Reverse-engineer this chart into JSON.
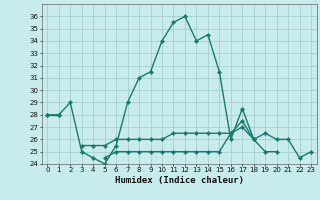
{
  "xlabel": "Humidex (Indice chaleur)",
  "background_color": "#c8ecec",
  "grid_color": "#aad4d4",
  "line_color": "#1a7a6e",
  "xlim": [
    -0.5,
    23.5
  ],
  "ylim": [
    24,
    37
  ],
  "yticks": [
    24,
    25,
    26,
    27,
    28,
    29,
    30,
    31,
    32,
    33,
    34,
    35,
    36
  ],
  "xticks": [
    0,
    1,
    2,
    3,
    4,
    5,
    6,
    7,
    8,
    9,
    10,
    11,
    12,
    13,
    14,
    15,
    16,
    17,
    18,
    19,
    20,
    21,
    22,
    23
  ],
  "series": [
    {
      "x": [
        0,
        1,
        2,
        3,
        4,
        5,
        6,
        7,
        8,
        9,
        10,
        11,
        12,
        13,
        14,
        15,
        16,
        17,
        18,
        19,
        20,
        21,
        22,
        23
      ],
      "y": [
        28,
        28,
        29,
        25,
        24.5,
        24,
        25.5,
        29,
        31,
        31.5,
        34,
        35.5,
        36,
        34,
        34.5,
        31.5,
        26,
        28.5,
        26,
        26.5,
        26,
        26,
        24.5,
        25
      ]
    },
    {
      "x": [
        0,
        1
      ],
      "y": [
        28,
        28
      ]
    },
    {
      "x": [
        3,
        4,
        5,
        6,
        7,
        8,
        9,
        10,
        11,
        12,
        13,
        14,
        15,
        16,
        17,
        18,
        19,
        20
      ],
      "y": [
        25.5,
        25.5,
        25.5,
        26,
        26,
        26,
        26,
        26,
        26.5,
        26.5,
        26.5,
        26.5,
        26.5,
        26.5,
        27,
        26,
        25,
        25
      ]
    },
    {
      "x": [
        5,
        6,
        7,
        8,
        9,
        10,
        11,
        12,
        13,
        14,
        15,
        16,
        17,
        18
      ],
      "y": [
        24.5,
        25,
        25,
        25,
        25,
        25,
        25,
        25,
        25,
        25,
        25,
        26.5,
        27.5,
        26
      ]
    }
  ]
}
